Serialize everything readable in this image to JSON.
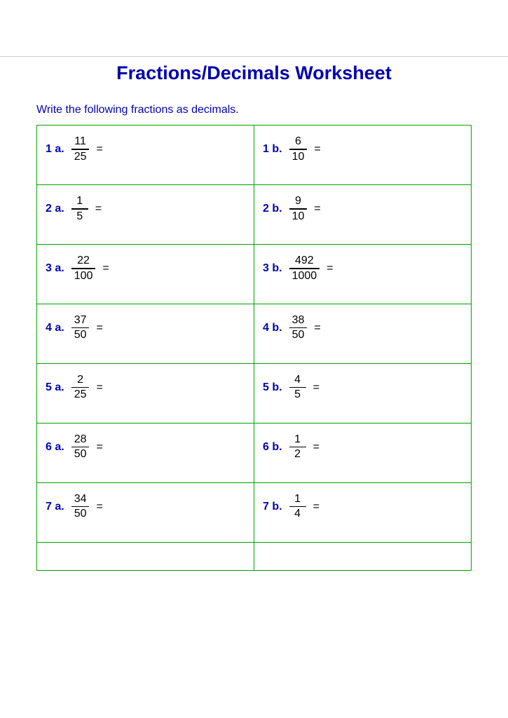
{
  "title": "Fractions/Decimals Worksheet",
  "instruction": "Write the following fractions as decimals.",
  "colors": {
    "heading": "#0000b0",
    "border": "#00a000",
    "text": "#000000",
    "background": "#ffffff"
  },
  "typography": {
    "title_fontsize": 27,
    "body_fontsize": 16,
    "font_family": "Arial"
  },
  "problems": [
    {
      "row": 1,
      "a": {
        "label": "1 a.",
        "numerator": "11",
        "denominator": "25"
      },
      "b": {
        "label": "1 b.",
        "numerator": "6",
        "denominator": "10"
      }
    },
    {
      "row": 2,
      "a": {
        "label": "2 a.",
        "numerator": "1",
        "denominator": "5"
      },
      "b": {
        "label": "2 b.",
        "numerator": "9",
        "denominator": "10"
      }
    },
    {
      "row": 3,
      "a": {
        "label": "3 a.",
        "numerator": "22",
        "denominator": "100"
      },
      "b": {
        "label": "3 b.",
        "numerator": "492",
        "denominator": "1000"
      }
    },
    {
      "row": 4,
      "a": {
        "label": "4 a.",
        "numerator": "37",
        "denominator": "50"
      },
      "b": {
        "label": "4 b.",
        "numerator": "38",
        "denominator": "50"
      }
    },
    {
      "row": 5,
      "a": {
        "label": "5 a.",
        "numerator": "2",
        "denominator": "25"
      },
      "b": {
        "label": "5 b.",
        "numerator": "4",
        "denominator": "5"
      }
    },
    {
      "row": 6,
      "a": {
        "label": "6 a.",
        "numerator": "28",
        "denominator": "50"
      },
      "b": {
        "label": "6 b.",
        "numerator": "1",
        "denominator": "2"
      }
    },
    {
      "row": 7,
      "a": {
        "label": "7 a.",
        "numerator": "34",
        "denominator": "50"
      },
      "b": {
        "label": "7 b.",
        "numerator": "1",
        "denominator": "4"
      }
    }
  ],
  "equals_sign": "="
}
